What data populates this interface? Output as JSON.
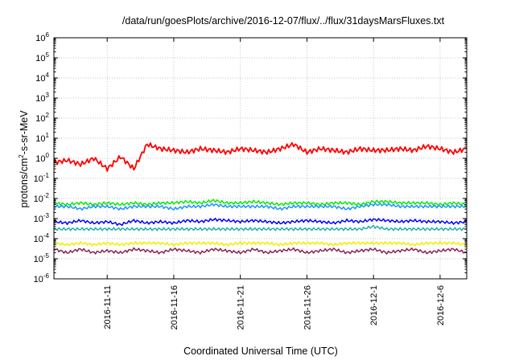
{
  "chart_data": {
    "type": "line",
    "title": "/data/run/goesPlots/archive/2016-12-07/flux/../flux/31daysMarsFluxes.txt",
    "xlabel": "Coordinated Universal Time (UTC)",
    "ylabel": "protons/cm²-s-sr-MeV",
    "ylabel_parts": {
      "pre": "protons/cm",
      "sup": "2",
      "post": "-s-sr-MeV"
    },
    "xlim": [
      "2016-11-07",
      "2016-12-08"
    ],
    "yscale": "log",
    "ylim": [
      1e-06,
      1000000.0
    ],
    "y_ticks": [
      {
        "exp": "-6"
      },
      {
        "exp": "-5"
      },
      {
        "exp": "-4"
      },
      {
        "exp": "-3"
      },
      {
        "exp": "-2"
      },
      {
        "exp": "-1"
      },
      {
        "exp": "0"
      },
      {
        "exp": "1"
      },
      {
        "exp": "2"
      },
      {
        "exp": "3"
      },
      {
        "exp": "4"
      },
      {
        "exp": "5"
      },
      {
        "exp": "6"
      }
    ],
    "x_ticks": [
      "2016-11-11",
      "2016-11-16",
      "2016-11-21",
      "2016-11-26",
      "2016-12-1",
      "2016-12-6"
    ],
    "grid": true,
    "legend": "none",
    "x": [
      "2016-11-07",
      "2016-11-08",
      "2016-11-09",
      "2016-11-10",
      "2016-11-11",
      "2016-11-12",
      "2016-11-13",
      "2016-11-14",
      "2016-11-15",
      "2016-11-16",
      "2016-11-17",
      "2016-11-18",
      "2016-11-19",
      "2016-11-20",
      "2016-11-21",
      "2016-11-22",
      "2016-11-23",
      "2016-11-24",
      "2016-11-25",
      "2016-11-26",
      "2016-11-27",
      "2016-11-28",
      "2016-11-29",
      "2016-11-30",
      "2016-12-01",
      "2016-12-02",
      "2016-12-03",
      "2016-12-04",
      "2016-12-05",
      "2016-12-06",
      "2016-12-07",
      "2016-12-08"
    ],
    "series": [
      {
        "color": "#ff0000",
        "values": [
          0.6,
          0.8,
          0.5,
          1.0,
          0.3,
          1.2,
          0.3,
          5.0,
          3.0,
          2.5,
          2.0,
          3.0,
          2.5,
          2.0,
          3.0,
          2.5,
          2.0,
          3.0,
          5.0,
          2.0,
          3.0,
          2.5,
          2.0,
          3.0,
          2.5,
          2.5,
          3.0,
          2.5,
          4.0,
          3.0,
          2.0,
          3.0
        ]
      },
      {
        "color": "#00ee00",
        "values": [
          0.006,
          0.005,
          0.006,
          0.005,
          0.006,
          0.005,
          0.006,
          0.005,
          0.006,
          0.006,
          0.007,
          0.006,
          0.008,
          0.006,
          0.006,
          0.007,
          0.006,
          0.005,
          0.006,
          0.006,
          0.005,
          0.006,
          0.006,
          0.005,
          0.007,
          0.007,
          0.006,
          0.006,
          0.006,
          0.005,
          0.006,
          0.005
        ]
      },
      {
        "color": "#1e90ff",
        "values": [
          0.004,
          0.004,
          0.003,
          0.004,
          0.004,
          0.003,
          0.004,
          0.004,
          0.004,
          0.003,
          0.004,
          0.004,
          0.005,
          0.004,
          0.004,
          0.004,
          0.004,
          0.003,
          0.004,
          0.004,
          0.004,
          0.004,
          0.003,
          0.004,
          0.005,
          0.005,
          0.004,
          0.004,
          0.004,
          0.004,
          0.004,
          0.004
        ]
      },
      {
        "color": "#0000ff",
        "values": [
          0.0007,
          0.0006,
          0.0008,
          0.0006,
          0.0007,
          0.0005,
          0.0008,
          0.0006,
          0.0007,
          0.0006,
          0.0008,
          0.0007,
          0.0009,
          0.0008,
          0.0007,
          0.0008,
          0.0007,
          0.0006,
          0.0007,
          0.0008,
          0.0007,
          0.0006,
          0.0008,
          0.0007,
          0.0009,
          0.0008,
          0.0007,
          0.0008,
          0.0007,
          0.0007,
          0.0006,
          0.0007
        ]
      },
      {
        "color": "#20b2aa",
        "values": [
          0.0003,
          0.0003,
          0.0003,
          0.0003,
          0.0003,
          0.0003,
          0.0003,
          0.0003,
          0.0003,
          0.0003,
          0.0003,
          0.0003,
          0.0003,
          0.0003,
          0.0003,
          0.0003,
          0.0003,
          0.0003,
          0.0003,
          0.0003,
          0.0003,
          0.0003,
          0.0003,
          0.0003,
          0.0004,
          0.0003,
          0.0003,
          0.0003,
          0.0003,
          0.0003,
          0.0003,
          0.0003
        ]
      },
      {
        "color": "#eeee00",
        "values": [
          6e-05,
          5e-05,
          6e-05,
          5e-05,
          6e-05,
          5e-05,
          6e-05,
          6e-05,
          6e-05,
          5e-05,
          6e-05,
          6e-05,
          6e-05,
          5e-05,
          6e-05,
          6e-05,
          6e-05,
          5e-05,
          6e-05,
          6e-05,
          6e-05,
          5e-05,
          6e-05,
          6e-05,
          6e-05,
          6e-05,
          6e-05,
          5e-05,
          6e-05,
          6e-05,
          6e-05,
          5e-05
        ]
      },
      {
        "color": "#8b2252",
        "values": [
          3e-05,
          2e-05,
          3e-05,
          2e-05,
          2.5e-05,
          2e-05,
          3e-05,
          2.5e-05,
          2e-05,
          3e-05,
          2.5e-05,
          2e-05,
          3e-05,
          2.5e-05,
          2e-05,
          3e-05,
          2e-05,
          2.5e-05,
          3e-05,
          2e-05,
          2.5e-05,
          3e-05,
          2e-05,
          2.5e-05,
          3e-05,
          2e-05,
          2.5e-05,
          3e-05,
          2e-05,
          2.5e-05,
          3e-05,
          2e-05
        ]
      }
    ]
  }
}
